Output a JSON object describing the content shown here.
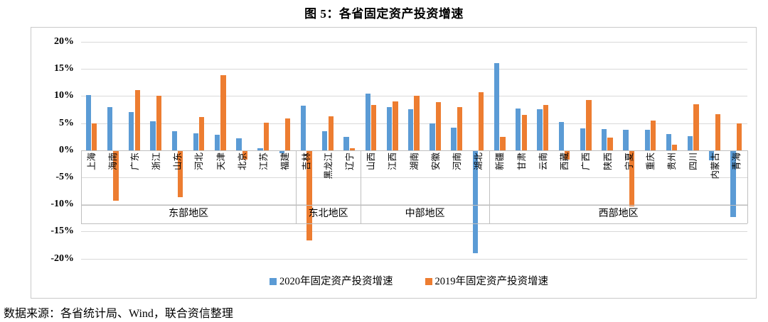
{
  "figure_title": "图 5：各省固定资产投资增速",
  "source_note": "数据来源：各省统计局、Wind，联合资信整理",
  "colors": {
    "bar_2020": "#5B9BD5",
    "bar_2019": "#ED7D31",
    "gridline": "#D9D9D9",
    "axis_line": "#BFBFBF",
    "border": "#C9C9C9"
  },
  "chart_data": {
    "type": "bar",
    "title": "图 5：各省固定资产投资增速",
    "xlabel": "",
    "ylabel": "",
    "ylim": [
      -20,
      20
    ],
    "ytick_step": 5,
    "grid": true,
    "legend_position": "bottom",
    "yticks": [
      "20%",
      "15%",
      "10%",
      "5%",
      "0%",
      "-5%",
      "-10%",
      "-15%",
      "-20%"
    ],
    "categories": [
      "上海",
      "海南",
      "广东",
      "浙江",
      "山东",
      "河北",
      "天津",
      "北京",
      "江苏",
      "福建",
      "吉林",
      "黑龙江",
      "辽宁",
      "山西",
      "江西",
      "湖南",
      "安徽",
      "河南",
      "湖北",
      "新疆",
      "甘肃",
      "云南",
      "西藏",
      "广西",
      "陕西",
      "宁夏",
      "重庆",
      "贵州",
      "四川",
      "内蒙古",
      "青海"
    ],
    "groups": [
      {
        "label": "东部地区",
        "count": 10
      },
      {
        "label": "东北地区",
        "count": 3
      },
      {
        "label": "中部地区",
        "count": 6
      },
      {
        "label": "西部地区",
        "count": 12
      }
    ],
    "series": [
      {
        "name": "2020年固定资产投资增速",
        "color": "#5B9BD5",
        "values": [
          10.2,
          7.9,
          7.1,
          5.3,
          3.5,
          3.1,
          2.9,
          2.2,
          0.3,
          -0.4,
          8.2,
          3.5,
          2.5,
          10.4,
          8.0,
          7.5,
          5.0,
          4.1,
          -18.9,
          16.1,
          7.7,
          7.6,
          5.2,
          4.0,
          3.9,
          3.8,
          3.7,
          3.0,
          2.6,
          -1.7,
          -12.2
        ]
      },
      {
        "name": "2019年固定资产投资增速",
        "color": "#ED7D31",
        "values": [
          5.0,
          -9.2,
          11.1,
          10.0,
          -8.6,
          6.1,
          13.9,
          -1.6,
          5.1,
          5.9,
          -16.5,
          6.2,
          0.4,
          8.3,
          9.0,
          10.0,
          8.9,
          7.9,
          10.7,
          2.4,
          6.5,
          8.4,
          -1.6,
          9.3,
          2.3,
          -10.2,
          5.5,
          1.0,
          8.5,
          6.7,
          4.9
        ]
      }
    ]
  }
}
